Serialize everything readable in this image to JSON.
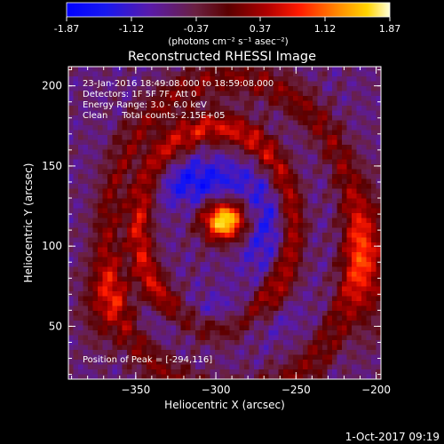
{
  "colorbar": {
    "tick_labels": [
      "-1.87",
      "-1.12",
      "-0.37",
      "0.37",
      "1.12",
      "1.87"
    ],
    "range": [
      -1.87,
      1.87
    ],
    "units_label": "(photons cm⁻² s⁻¹ asec⁻²)"
  },
  "chart_data": {
    "type": "heatmap",
    "title": "Reconstructed RHESSI Image",
    "xlabel": "Heliocentric X (arcsec)",
    "ylabel": "Heliocentric Y (arcsec)",
    "xlim": [
      -392,
      -197
    ],
    "ylim": [
      17,
      212
    ],
    "x_ticks": [
      -350,
      -300,
      -250,
      -200
    ],
    "y_ticks": [
      50,
      100,
      150,
      200
    ],
    "colormap": "hot-blue",
    "peak": [
      -294,
      116
    ],
    "annotations": {
      "line1": "23-Jan-2016 18:49:08.000 to 18:59:08.000",
      "line2": "Detectors: 1F 5F 7F, Att 0",
      "line3": "Energy Range: 3.0 - 6.0 keV",
      "line4": "Clean     Total counts: 2.15E+05",
      "peak_label": "Position of Peak = [-294,116]"
    }
  },
  "footer": {
    "timestamp": "1-Oct-2017 09:19"
  }
}
